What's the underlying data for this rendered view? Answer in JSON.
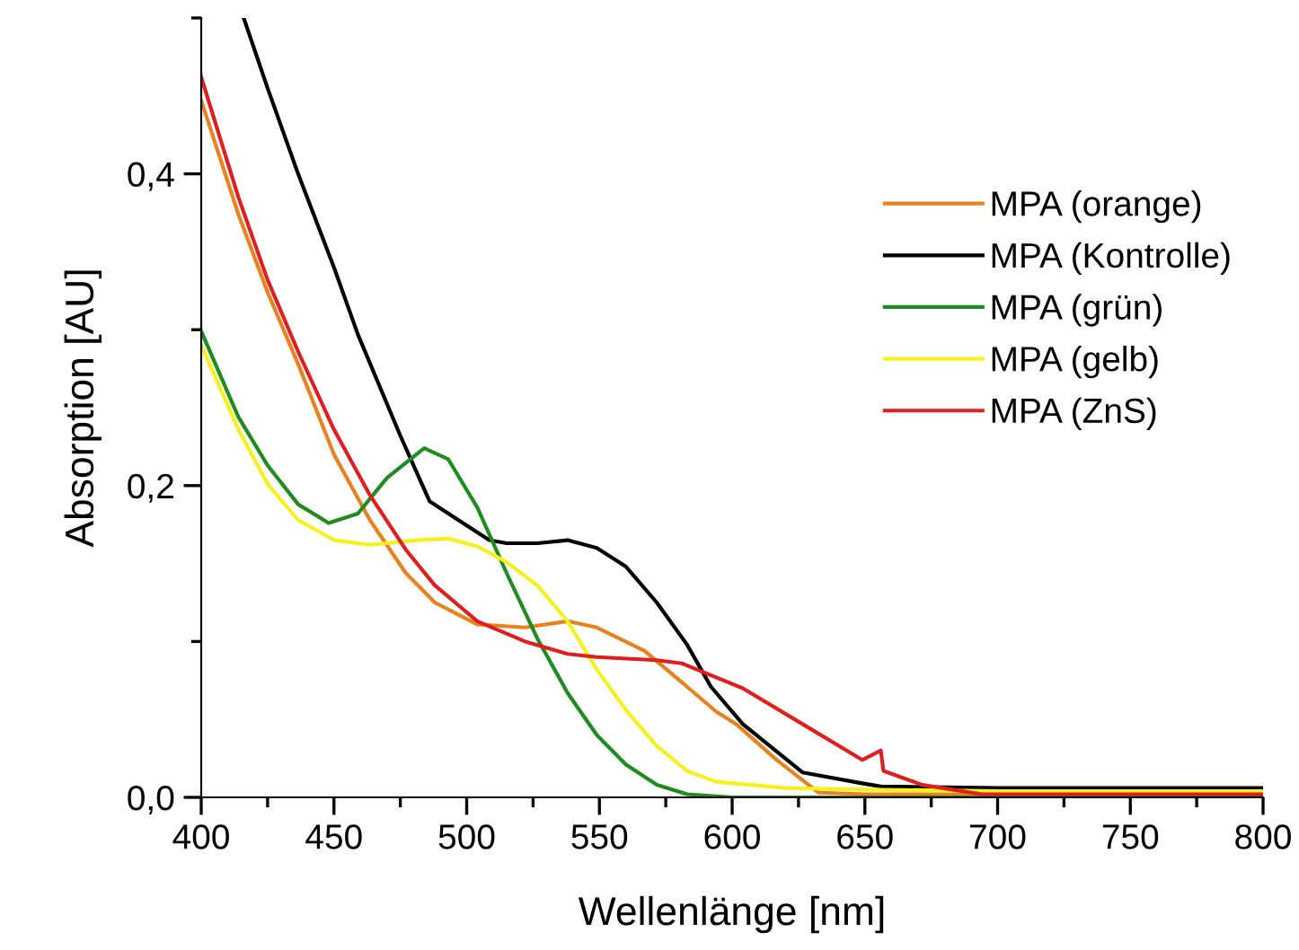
{
  "chart_data": {
    "type": "line",
    "xlabel": "Wellenlänge [nm]",
    "ylabel": "Absorption [AU]",
    "xlim": [
      400,
      800
    ],
    "ylim": [
      0,
      0.5
    ],
    "xticks": [
      400,
      {
        "value": 425,
        "label": null
      },
      450,
      {
        "value": 475,
        "label": null
      },
      500,
      {
        "value": 525,
        "label": null
      },
      550,
      {
        "value": 575,
        "label": null
      },
      600,
      {
        "value": 625,
        "label": null
      },
      650,
      {
        "value": 675,
        "label": null
      },
      700,
      {
        "value": 725,
        "label": null
      },
      750,
      {
        "value": 775,
        "label": null
      },
      800
    ],
    "yticks": [
      {
        "value": 0,
        "label": "0,0"
      },
      {
        "value": 0.1,
        "label": null
      },
      {
        "value": 0.2,
        "label": "0,2"
      },
      {
        "value": 0.3,
        "label": null
      },
      {
        "value": 0.4,
        "label": "0,4"
      },
      {
        "value": 0.5,
        "label": null
      }
    ],
    "grid": false,
    "legend": "center right",
    "line_style": "solid",
    "marker": "none",
    "series": [
      {
        "name": "MPA (orange)",
        "color": "#e8821e",
        "x": [
          400,
          414,
          425,
          436.5,
          450,
          463.5,
          477,
          488,
          504,
          522,
          538,
          549,
          567,
          583,
          594,
          601.5,
          616.8,
          632.6,
          650,
          700,
          750,
          800
        ],
        "values": [
          0.447,
          0.374,
          0.324,
          0.278,
          0.22,
          0.178,
          0.144,
          0.125,
          0.111,
          0.109,
          0.113,
          0.109,
          0.094,
          0.071,
          0.055,
          0.047,
          0.024,
          0.003,
          0.002,
          0.002,
          0.002,
          0.002
        ]
      },
      {
        "name": "MPA (Kontrolle)",
        "color": "#000000",
        "x": [
          416,
          425,
          436.5,
          450,
          459,
          475,
          486,
          499.5,
          508.5,
          515,
          526.6,
          538,
          549,
          560,
          571.6,
          583,
          592,
          604,
          626.5,
          649,
          656,
          700,
          750,
          800
        ],
        "values": [
          0.5,
          0.455,
          0.4,
          0.34,
          0.297,
          0.232,
          0.19,
          0.175,
          0.165,
          0.163,
          0.163,
          0.165,
          0.16,
          0.148,
          0.125,
          0.098,
          0.071,
          0.047,
          0.016,
          0.009,
          0.007,
          0.006,
          0.006,
          0.006
        ]
      },
      {
        "name": "MPA (grün)",
        "color": "#1e8c1e",
        "x": [
          400,
          414,
          425,
          436.5,
          448,
          459,
          470,
          484,
          493,
          504,
          515,
          526.6,
          538,
          549,
          560,
          571.6,
          583,
          600,
          700,
          800
        ],
        "values": [
          0.299,
          0.244,
          0.213,
          0.188,
          0.176,
          0.182,
          0.205,
          0.224,
          0.217,
          0.186,
          0.144,
          0.102,
          0.067,
          0.04,
          0.021,
          0.008,
          0.002,
          0.0,
          0.0,
          0.0
        ]
      },
      {
        "name": "MPA (gelb)",
        "color": "#f5f01e",
        "x": [
          400,
          414,
          425,
          436.5,
          450,
          463.5,
          481.5,
          493,
          504,
          515,
          526.6,
          538,
          549,
          560,
          571.6,
          583,
          594,
          620,
          650,
          700,
          800
        ],
        "values": [
          0.29,
          0.236,
          0.201,
          0.178,
          0.165,
          0.162,
          0.165,
          0.166,
          0.161,
          0.151,
          0.136,
          0.113,
          0.082,
          0.056,
          0.033,
          0.017,
          0.01,
          0.006,
          0.005,
          0.004,
          0.004
        ]
      },
      {
        "name": "MPA (ZnS)",
        "color": "#e01e1e",
        "x": [
          400,
          414,
          425,
          436.5,
          450,
          463.5,
          477,
          488,
          504,
          522,
          538,
          549,
          571.6,
          581,
          604,
          626.5,
          649,
          656,
          657,
          671.6,
          694,
          750,
          800
        ],
        "values": [
          0.462,
          0.385,
          0.332,
          0.286,
          0.236,
          0.194,
          0.159,
          0.136,
          0.113,
          0.1,
          0.092,
          0.09,
          0.088,
          0.086,
          0.07,
          0.047,
          0.024,
          0.03,
          0.017,
          0.008,
          0.002,
          0.002,
          0.002
        ]
      }
    ]
  }
}
